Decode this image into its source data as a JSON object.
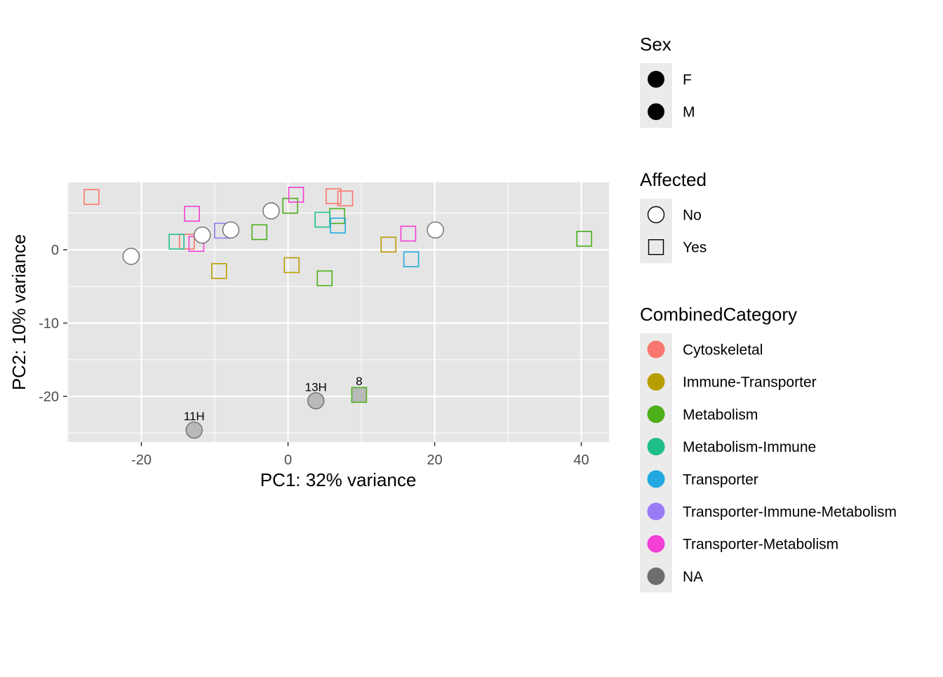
{
  "chart_data": {
    "type": "scatter",
    "xlabel": "PC1: 32% variance",
    "ylabel": "PC2: 10% variance",
    "xlim": [
      -30,
      44
    ],
    "ylim": [
      -26,
      9
    ],
    "x_ticks": [
      -20,
      0,
      20,
      40
    ],
    "y_ticks": [
      -20,
      -10,
      0
    ],
    "x_tick_labels": [
      "-20",
      "0",
      "20",
      "40"
    ],
    "y_tick_labels": [
      "-20",
      "-10",
      "0"
    ],
    "colors": {
      "Cytoskeletal": "#F8766D",
      "Immune-Transporter": "#B79F00",
      "Metabolism": "#4DAF1A",
      "Metabolism-Immune": "#1FBF8C",
      "Transporter": "#22A9E0",
      "Transporter-Immune-Metabolism": "#9B7BF5",
      "Transporter-Metabolism": "#F23FD5",
      "NA": "#6E6E6E",
      "NA_fill": "#B9B9B9",
      "panel": "#E5E5E5",
      "grid": "#FFFFFF",
      "legend_key_bg": "#EBEBEB"
    },
    "points": [
      {
        "x": -26.8,
        "y": 7.2,
        "shape": "square",
        "category": "Cytoskeletal"
      },
      {
        "x": -13.8,
        "y": 1.1,
        "shape": "square",
        "category": "Cytoskeletal"
      },
      {
        "x": 6.2,
        "y": 7.3,
        "shape": "square",
        "category": "Cytoskeletal"
      },
      {
        "x": 7.8,
        "y": 7.0,
        "shape": "square",
        "category": "Cytoskeletal"
      },
      {
        "x": -9.4,
        "y": -2.9,
        "shape": "square",
        "category": "Immune-Transporter"
      },
      {
        "x": 0.5,
        "y": -2.1,
        "shape": "square",
        "category": "Immune-Transporter"
      },
      {
        "x": 13.7,
        "y": 0.7,
        "shape": "square",
        "category": "Immune-Transporter"
      },
      {
        "x": -3.9,
        "y": 2.4,
        "shape": "square",
        "category": "Metabolism"
      },
      {
        "x": 0.3,
        "y": 6.0,
        "shape": "square",
        "category": "Metabolism"
      },
      {
        "x": 6.7,
        "y": 4.6,
        "shape": "square",
        "category": "Metabolism"
      },
      {
        "x": 5.0,
        "y": -3.9,
        "shape": "square",
        "category": "Metabolism"
      },
      {
        "x": 40.4,
        "y": 1.5,
        "shape": "square",
        "category": "Metabolism"
      },
      {
        "x": -15.2,
        "y": 1.1,
        "shape": "square",
        "category": "Metabolism-Immune"
      },
      {
        "x": 4.7,
        "y": 4.1,
        "shape": "square",
        "category": "Metabolism-Immune"
      },
      {
        "x": 6.8,
        "y": 3.3,
        "shape": "square",
        "category": "Transporter"
      },
      {
        "x": 16.8,
        "y": -1.3,
        "shape": "square",
        "category": "Transporter"
      },
      {
        "x": -9.0,
        "y": 2.6,
        "shape": "square",
        "category": "Transporter-Immune-Metabolism"
      },
      {
        "x": -13.1,
        "y": 4.9,
        "shape": "square",
        "category": "Transporter-Metabolism"
      },
      {
        "x": -12.5,
        "y": 0.8,
        "shape": "square",
        "category": "Transporter-Metabolism"
      },
      {
        "x": 1.1,
        "y": 7.5,
        "shape": "square",
        "category": "Transporter-Metabolism"
      },
      {
        "x": 16.4,
        "y": 2.2,
        "shape": "square",
        "category": "Transporter-Metabolism"
      },
      {
        "x": -21.4,
        "y": -0.9,
        "shape": "circle",
        "category": "NA"
      },
      {
        "x": -11.7,
        "y": 2.0,
        "shape": "circle",
        "category": "NA"
      },
      {
        "x": -7.8,
        "y": 2.7,
        "shape": "circle",
        "category": "NA"
      },
      {
        "x": -2.3,
        "y": 5.3,
        "shape": "circle",
        "category": "NA"
      },
      {
        "x": 20.1,
        "y": 2.7,
        "shape": "circle",
        "category": "NA"
      },
      {
        "x": -12.8,
        "y": -24.6,
        "shape": "filled-circle",
        "category": "NA",
        "label": "11H"
      },
      {
        "x": 3.8,
        "y": -20.6,
        "shape": "filled-circle",
        "category": "NA",
        "label": "13H"
      },
      {
        "x": 9.7,
        "y": -19.8,
        "shape": "filled-square",
        "category": "Metabolism",
        "label": "8"
      }
    ],
    "legends": [
      {
        "title": "Sex",
        "key": "sex",
        "entries": [
          {
            "label": "F",
            "symbol": "dot"
          },
          {
            "label": "M",
            "symbol": "dot"
          }
        ]
      },
      {
        "title": "Affected",
        "key": "affected",
        "entries": [
          {
            "label": "No",
            "symbol": "open-circle"
          },
          {
            "label": "Yes",
            "symbol": "open-square"
          }
        ]
      },
      {
        "title": "CombinedCategory",
        "key": "category",
        "entries": [
          {
            "label": "Cytoskeletal",
            "symbol": "color-dot",
            "category": "Cytoskeletal"
          },
          {
            "label": "Immune-Transporter",
            "symbol": "color-dot",
            "category": "Immune-Transporter"
          },
          {
            "label": "Metabolism",
            "symbol": "color-dot",
            "category": "Metabolism"
          },
          {
            "label": "Metabolism-Immune",
            "symbol": "color-dot",
            "category": "Metabolism-Immune"
          },
          {
            "label": "Transporter",
            "symbol": "color-dot",
            "category": "Transporter"
          },
          {
            "label": "Transporter-Immune-Metabolism",
            "symbol": "color-dot",
            "category": "Transporter-Immune-Metabolism"
          },
          {
            "label": "Transporter-Metabolism",
            "symbol": "color-dot",
            "category": "Transporter-Metabolism"
          },
          {
            "label": "NA",
            "symbol": "color-dot",
            "category": "NA"
          }
        ]
      }
    ]
  }
}
